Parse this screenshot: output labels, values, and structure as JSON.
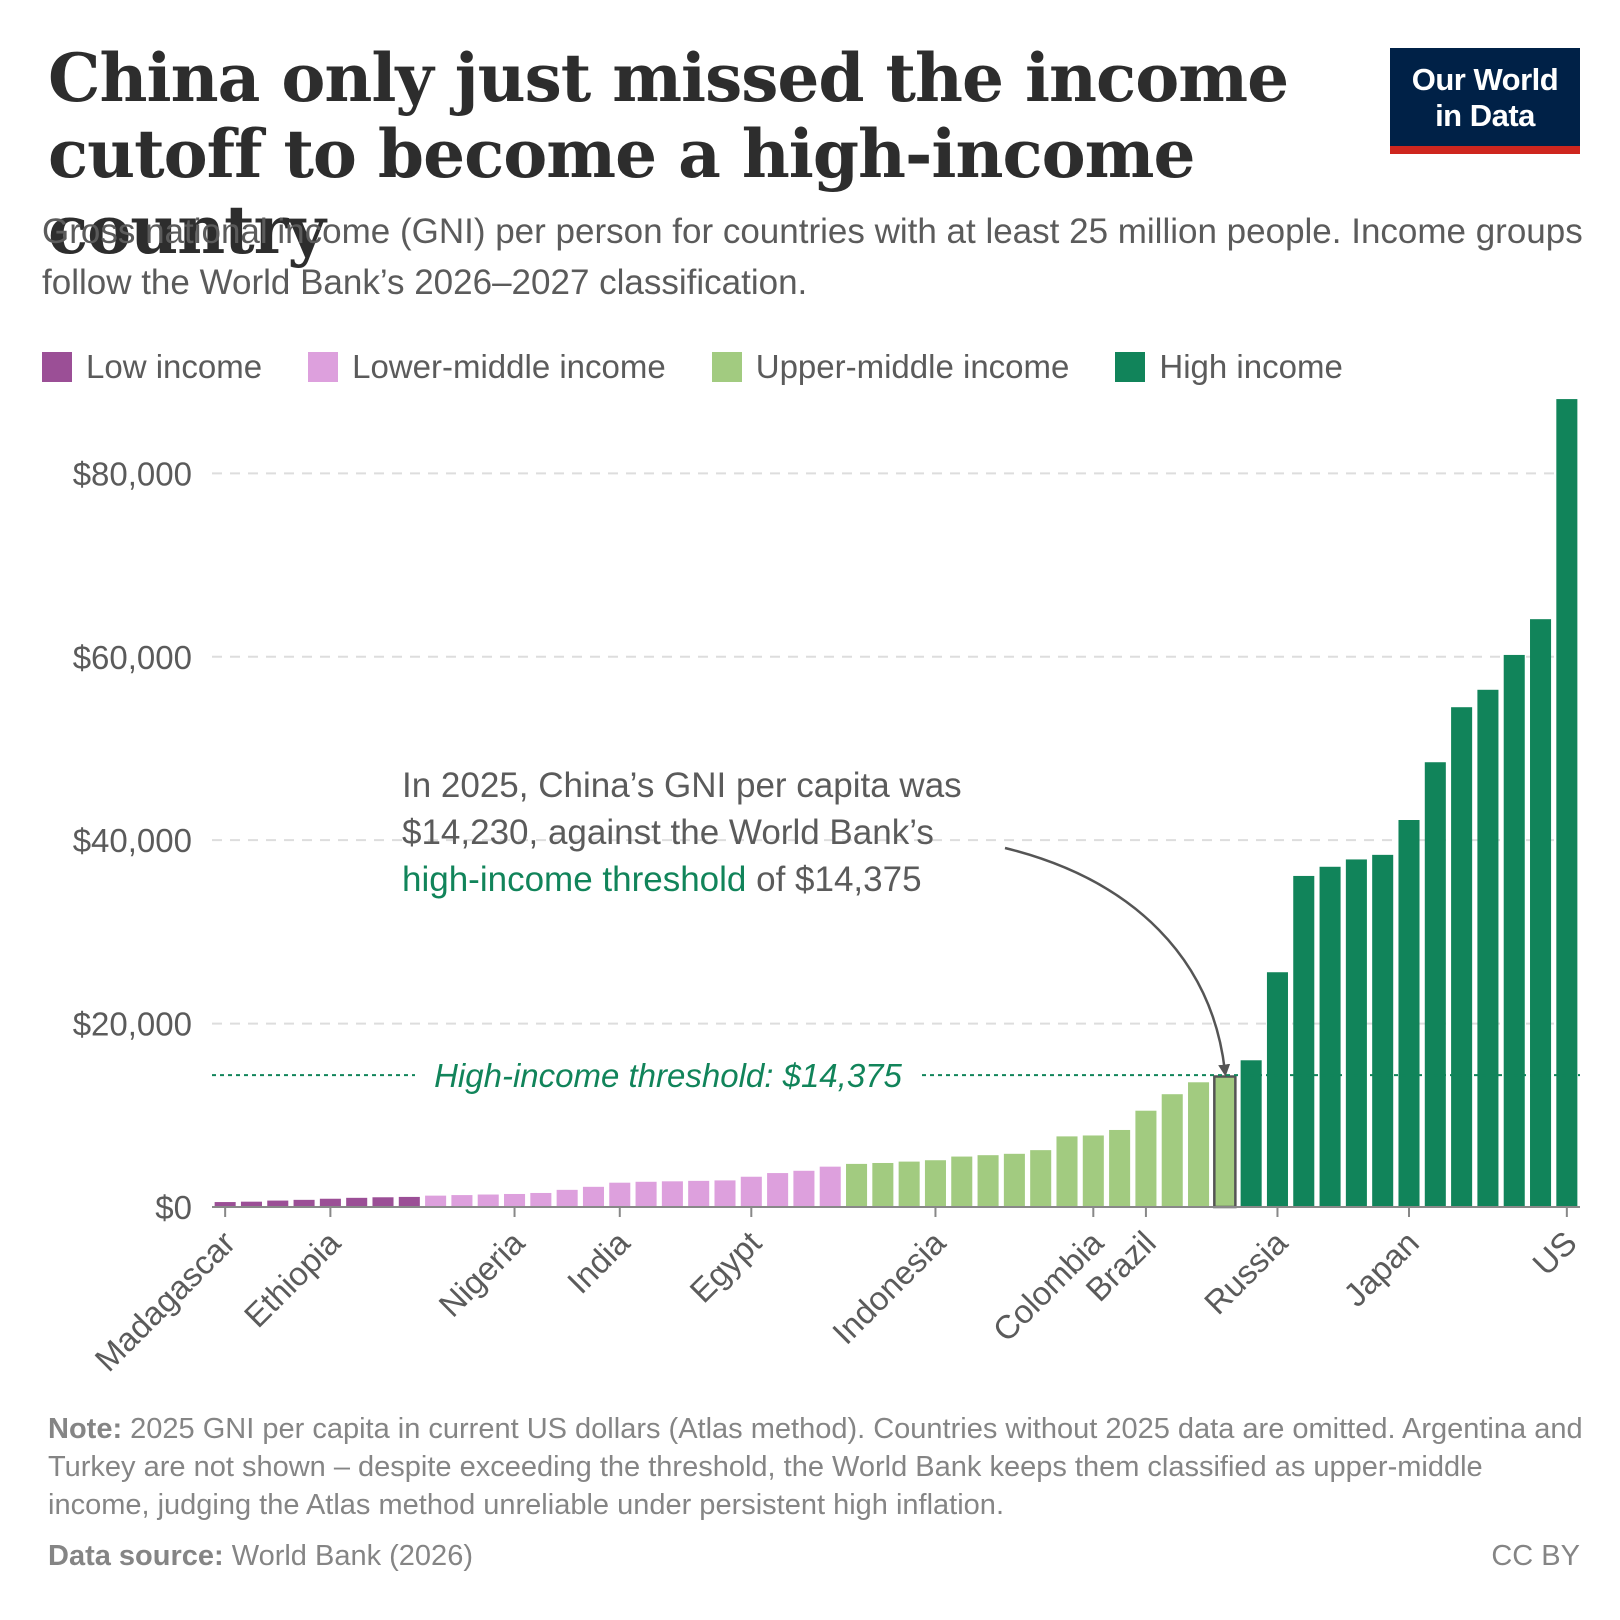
{
  "header": {
    "title": "China only just missed the income cutoff to become a high-income country",
    "subtitle": "Gross national income (GNI) per person for countries with at least 25 million people. Income groups follow the World Bank’s 2026–2027 classification.",
    "logo_line1": "Our World",
    "logo_line2": "in Data"
  },
  "colors": {
    "low": "#9b4f96",
    "lower_middle": "#dda0dd",
    "upper_middle": "#a2cb80",
    "high": "#11845a",
    "threshold": "#11845a",
    "grid": "#dddddd",
    "text": "#5b5b5b",
    "logo_bg": "#002147",
    "logo_bar": "#ce261e"
  },
  "legend": [
    {
      "label": "Low income",
      "group": "low"
    },
    {
      "label": "Lower-middle income",
      "group": "lower_middle"
    },
    {
      "label": "Upper-middle income",
      "group": "upper_middle"
    },
    {
      "label": "High income",
      "group": "high"
    }
  ],
  "annotation": {
    "line1": "In 2025, China’s GNI per capita was",
    "line2": "$14,230, against the World Bank’s",
    "line3_highlight": "high-income threshold",
    "line3_rest": " of $14,375"
  },
  "chart_data": {
    "type": "bar",
    "ylim": [
      0,
      88000
    ],
    "yticks": [
      0,
      20000,
      40000,
      60000,
      80000
    ],
    "ytick_labels": [
      "$0",
      "$20,000",
      "$40,000",
      "$60,000",
      "$80,000"
    ],
    "grid": true,
    "legend_position": "top-left",
    "threshold": {
      "value": 14375,
      "label": "High-income threshold: $14,375"
    },
    "highlight_index": 38,
    "labeled_indices": [
      0,
      4,
      11,
      15,
      20,
      27,
      33,
      35,
      40,
      45,
      51
    ],
    "categories": [
      "Madagascar",
      "",
      "",
      "",
      "Ethiopia",
      "",
      "",
      "",
      "",
      "",
      "",
      "Nigeria",
      "",
      "",
      "",
      "India",
      "",
      "",
      "",
      "",
      "Egypt",
      "",
      "",
      "",
      "",
      "",
      "",
      "Indonesia",
      "",
      "",
      "",
      "",
      "",
      "Colombia",
      "",
      "Brazil",
      "",
      "",
      "",
      "",
      "Russia",
      "",
      "",
      "",
      "",
      "Japan",
      "",
      "",
      "",
      "",
      "",
      "US"
    ],
    "values": [
      540,
      580,
      700,
      780,
      900,
      1000,
      1060,
      1100,
      1240,
      1300,
      1360,
      1420,
      1530,
      1870,
      2200,
      2650,
      2750,
      2800,
      2850,
      2900,
      3300,
      3700,
      3950,
      4400,
      4700,
      4800,
      4950,
      5100,
      5500,
      5650,
      5800,
      6200,
      7700,
      7800,
      8400,
      10500,
      12300,
      13600,
      14230,
      16000,
      25600,
      36100,
      37100,
      37900,
      38400,
      42200,
      48500,
      54500,
      56400,
      60200,
      64100,
      88100
    ],
    "groups": [
      "low",
      "low",
      "low",
      "low",
      "low",
      "low",
      "low",
      "low",
      "lower_middle",
      "lower_middle",
      "lower_middle",
      "lower_middle",
      "lower_middle",
      "lower_middle",
      "lower_middle",
      "lower_middle",
      "lower_middle",
      "lower_middle",
      "lower_middle",
      "lower_middle",
      "lower_middle",
      "lower_middle",
      "lower_middle",
      "lower_middle",
      "upper_middle",
      "upper_middle",
      "upper_middle",
      "upper_middle",
      "upper_middle",
      "upper_middle",
      "upper_middle",
      "upper_middle",
      "upper_middle",
      "upper_middle",
      "upper_middle",
      "upper_middle",
      "upper_middle",
      "upper_middle",
      "upper_middle",
      "high",
      "high",
      "high",
      "high",
      "high",
      "high",
      "high",
      "high",
      "high",
      "high",
      "high",
      "high",
      "high"
    ]
  },
  "footer": {
    "note_label": "Note:",
    "note_text": " 2025 GNI per capita in current US dollars (Atlas method). Countries without 2025 data are omitted. Argentina and Turkey are not shown – despite exceeding the threshold, the World Bank keeps them classified as upper-middle income, judging the Atlas method unreliable under persistent high inflation.",
    "source_label": "Data source:",
    "source_text": " World Bank (2026)",
    "license": "CC BY"
  }
}
